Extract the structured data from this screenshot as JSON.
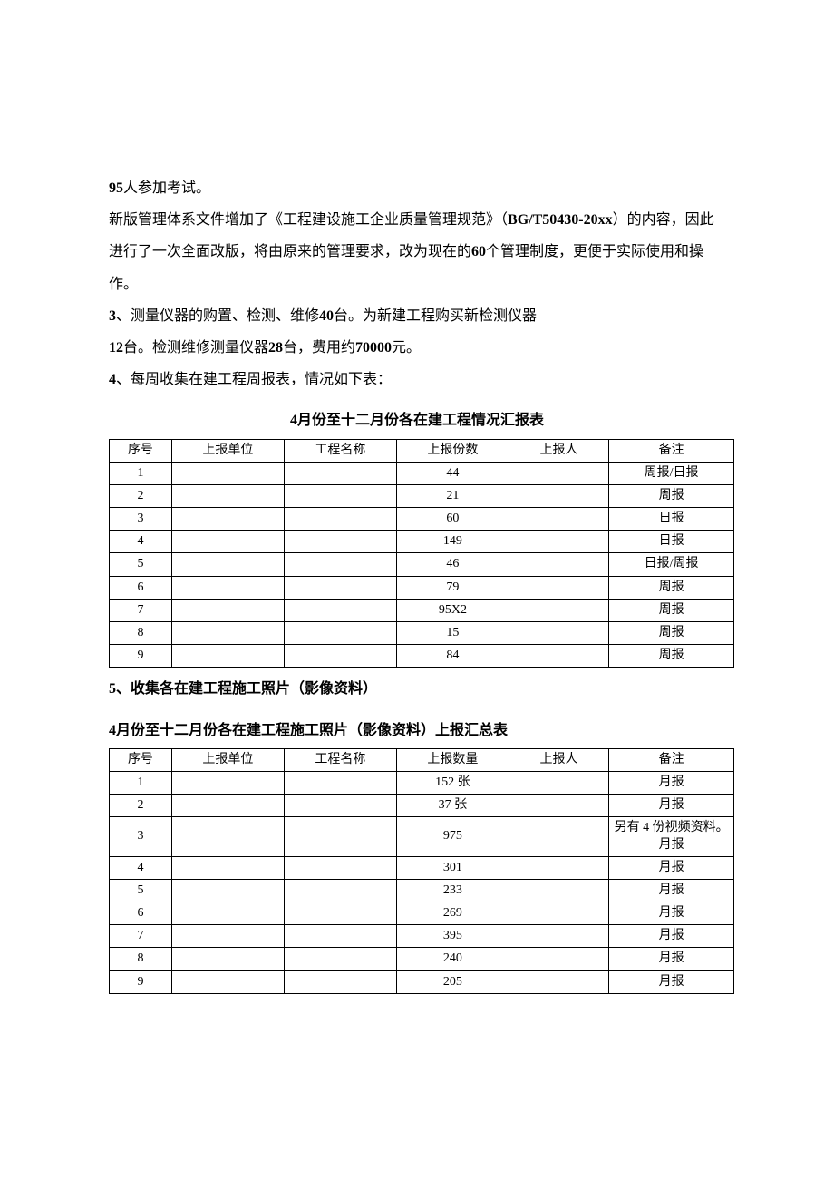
{
  "paragraphs": {
    "p1_a": "95",
    "p1_b": "人参加考试。",
    "p2_a": "新版管理体系文件增加了《工程建设施工企业质量管理规范》（",
    "p2_b": "BG/T50430-20xx",
    "p2_c": "）的内容，因此进行了一次全面改版，将由原来的管理要求，改为现在的",
    "p2_d": "60",
    "p2_e": "个管理制度，更便于实际使用和操作。",
    "p3_a": "3",
    "p3_b": "、测量仪器的购置、检测、维修",
    "p3_c": "40",
    "p3_d": "台。为新建工程购买新检测仪器",
    "p3_e": "12",
    "p3_f": "台。检测维修测量仪器",
    "p3_g": "28",
    "p3_h": "台，费用约",
    "p3_i": "70000",
    "p3_j": "元。",
    "p4_a": "4",
    "p4_b": "、每周收集在建工程周报表，情况如下表：",
    "p5_a": "5",
    "p5_b": "、收集各在建工程施工照片（影像资料）"
  },
  "table1": {
    "title_a": "4",
    "title_b": "月份至十二月份各在建工程情况汇报表",
    "headers": [
      "序号",
      "上报单位",
      "工程名称",
      "上报份数",
      "上报人",
      "备注"
    ],
    "rows": [
      {
        "seq": "1",
        "unit": "",
        "proj": "",
        "count": "44",
        "person": "",
        "note": "周报/日报"
      },
      {
        "seq": "2",
        "unit": "",
        "proj": "",
        "count": "21",
        "person": "",
        "note": "周报"
      },
      {
        "seq": "3",
        "unit": "",
        "proj": "",
        "count": "60",
        "person": "",
        "note": "日报"
      },
      {
        "seq": "4",
        "unit": "",
        "proj": "",
        "count": "149",
        "person": "",
        "note": "日报"
      },
      {
        "seq": "5",
        "unit": "",
        "proj": "",
        "count": "46",
        "person": "",
        "note": "日报/周报"
      },
      {
        "seq": "6",
        "unit": "",
        "proj": "",
        "count": "79",
        "person": "",
        "note": "周报"
      },
      {
        "seq": "7",
        "unit": "",
        "proj": "",
        "count": "95X2",
        "person": "",
        "note": "周报"
      },
      {
        "seq": "8",
        "unit": "",
        "proj": "",
        "count": "15",
        "person": "",
        "note": "周报"
      },
      {
        "seq": "9",
        "unit": "",
        "proj": "",
        "count": "84",
        "person": "",
        "note": "周报"
      }
    ]
  },
  "table2": {
    "title_a": "4",
    "title_b": "月份至十二月份各在建工程施工照片（影像资料）上报汇总表",
    "headers": [
      "序号",
      "上报单位",
      "工程名称",
      "上报数量",
      "上报人",
      "备注"
    ],
    "rows": [
      {
        "seq": "1",
        "unit": "",
        "proj": "",
        "count": "152 张",
        "person": "",
        "note": "月报"
      },
      {
        "seq": "2",
        "unit": "",
        "proj": "",
        "count": "37 张",
        "person": "",
        "note": "月报"
      },
      {
        "seq": "3",
        "unit": "",
        "proj": "",
        "count": "975",
        "person": "",
        "note": "另有 4 份视频资料。月报"
      },
      {
        "seq": "4",
        "unit": "",
        "proj": "",
        "count": "301",
        "person": "",
        "note": "月报"
      },
      {
        "seq": "5",
        "unit": "",
        "proj": "",
        "count": "233",
        "person": "",
        "note": "月报"
      },
      {
        "seq": "6",
        "unit": "",
        "proj": "",
        "count": "269",
        "person": "",
        "note": "月报"
      },
      {
        "seq": "7",
        "unit": "",
        "proj": "",
        "count": "395",
        "person": "",
        "note": "月报"
      },
      {
        "seq": "8",
        "unit": "",
        "proj": "",
        "count": "240",
        "person": "",
        "note": "月报"
      },
      {
        "seq": "9",
        "unit": "",
        "proj": "",
        "count": "205",
        "person": "",
        "note": "月报"
      }
    ]
  }
}
